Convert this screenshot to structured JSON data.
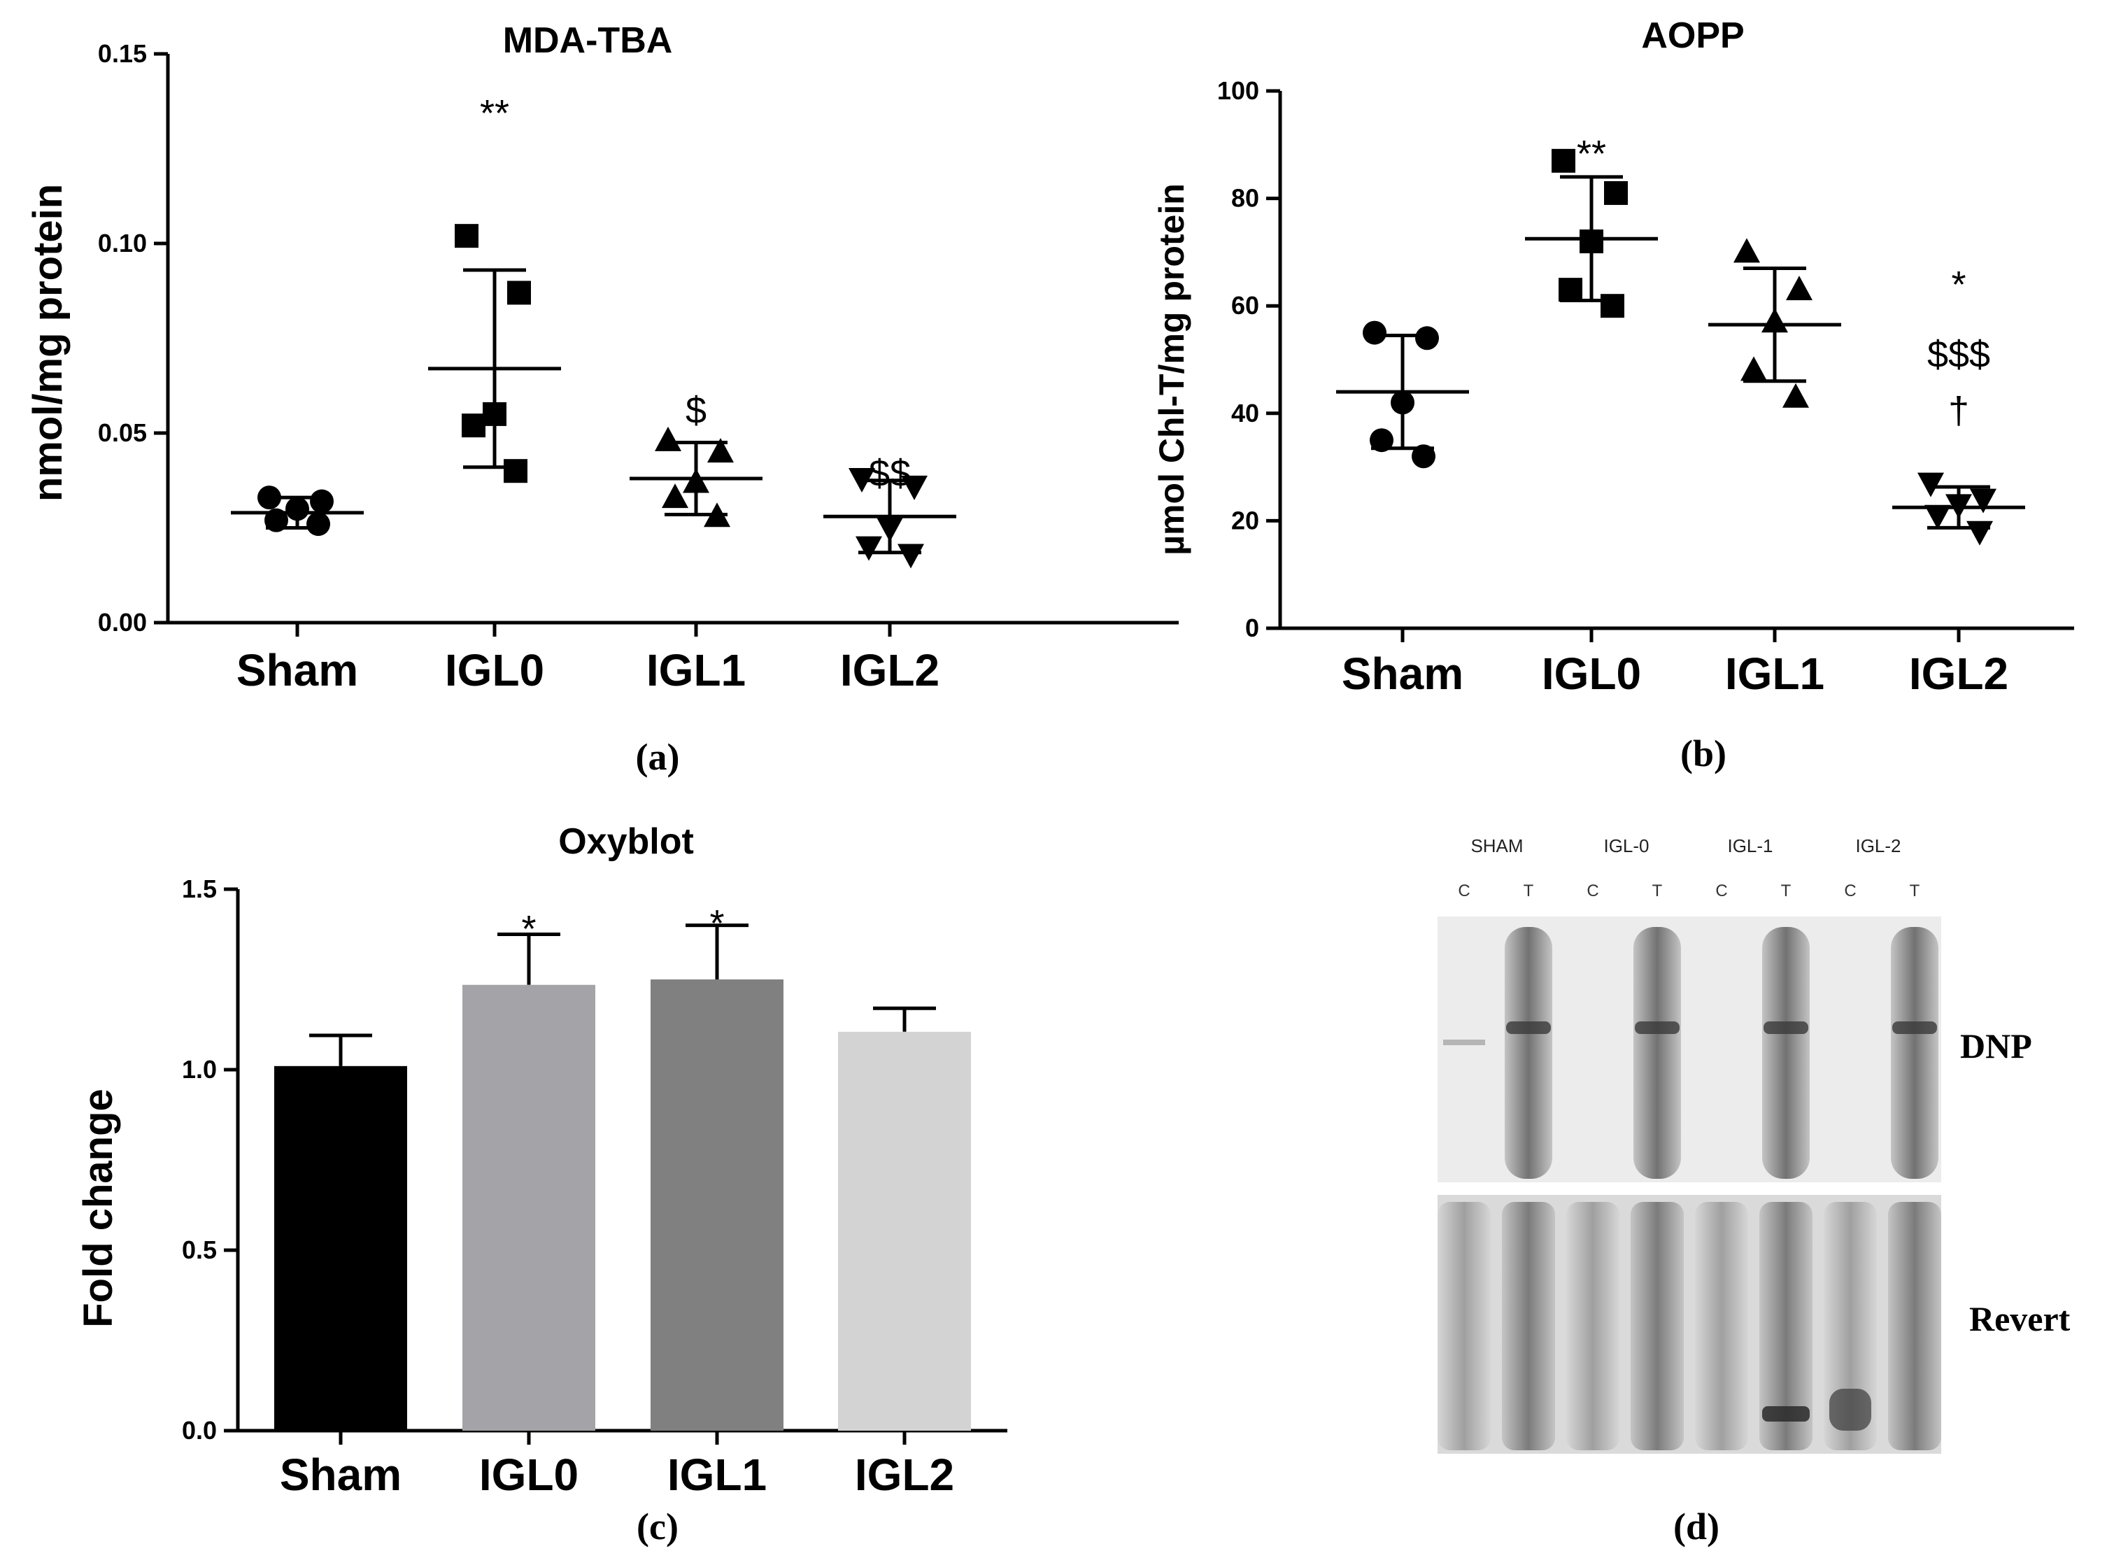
{
  "chart_data": [
    {
      "panel": "(a)",
      "type": "scatter",
      "title": "MDA-TBA",
      "xlabel": "",
      "ylabel": "nmol/mg protein",
      "ylim": [
        0,
        0.15
      ],
      "yticks": [
        "0.00",
        "0.05",
        "0.10",
        "0.15"
      ],
      "categories": [
        "Sham",
        "IGL0",
        "IGL1",
        "IGL2"
      ],
      "markers": [
        "circle",
        "square",
        "triangle-up",
        "triangle-down"
      ],
      "points": [
        [
          0.033,
          0.032,
          0.03,
          0.027,
          0.026
        ],
        [
          0.102,
          0.087,
          0.055,
          0.052,
          0.04
        ],
        [
          0.048,
          0.045,
          0.037,
          0.033,
          0.028
        ],
        [
          0.038,
          0.036,
          0.025,
          0.02,
          0.018
        ]
      ],
      "mean": [
        0.029,
        0.067,
        0.038,
        0.028
      ],
      "sd": [
        0.004,
        0.026,
        0.0095,
        0.0095
      ],
      "annotations": [
        "",
        "**",
        "$",
        "$$"
      ]
    },
    {
      "panel": "(b)",
      "type": "scatter",
      "title": "AOPP",
      "xlabel": "",
      "ylabel": "µmol Chl-T/mg protein",
      "ylim": [
        0,
        100
      ],
      "yticks": [
        "0",
        "20",
        "40",
        "60",
        "80",
        "100"
      ],
      "categories": [
        "Sham",
        "IGL0",
        "IGL1",
        "IGL2"
      ],
      "markers": [
        "circle",
        "square",
        "triangle-up",
        "triangle-down"
      ],
      "points": [
        [
          55,
          54,
          42,
          35,
          32
        ],
        [
          87,
          81,
          72,
          63,
          60
        ],
        [
          70,
          63,
          57,
          48,
          43
        ],
        [
          27,
          24,
          23,
          21,
          18
        ]
      ],
      "mean": [
        44,
        72.5,
        56.5,
        22.5
      ],
      "sd": [
        10.5,
        11.5,
        10.5,
        3.8
      ],
      "annotations": [
        "",
        "**",
        "",
        "*\n$$$\n†"
      ]
    },
    {
      "panel": "(c)",
      "type": "bar",
      "title": "Oxyblot",
      "xlabel": "",
      "ylabel": "Fold change",
      "ylim": [
        0,
        1.5
      ],
      "yticks": [
        "0.0",
        "0.5",
        "1.0",
        "1.5"
      ],
      "categories": [
        "Sham",
        "IGL0",
        "IGL1",
        "IGL2"
      ],
      "values": [
        1.01,
        1.235,
        1.25,
        1.105
      ],
      "error": [
        0.085,
        0.14,
        0.15,
        0.065
      ],
      "colors": [
        "#000000",
        "#a4a4a8",
        "#808080",
        "#d3d3d3"
      ],
      "annotations": [
        "",
        "*",
        "*",
        ""
      ]
    }
  ],
  "blot": {
    "panel": "(d)",
    "groups": [
      "SHAM",
      "IGL-0",
      "IGL-1",
      "IGL-2"
    ],
    "lanes": [
      "C",
      "T",
      "C",
      "T",
      "C",
      "T",
      "C",
      "T"
    ],
    "rows": [
      "DNP",
      "Revert"
    ]
  }
}
